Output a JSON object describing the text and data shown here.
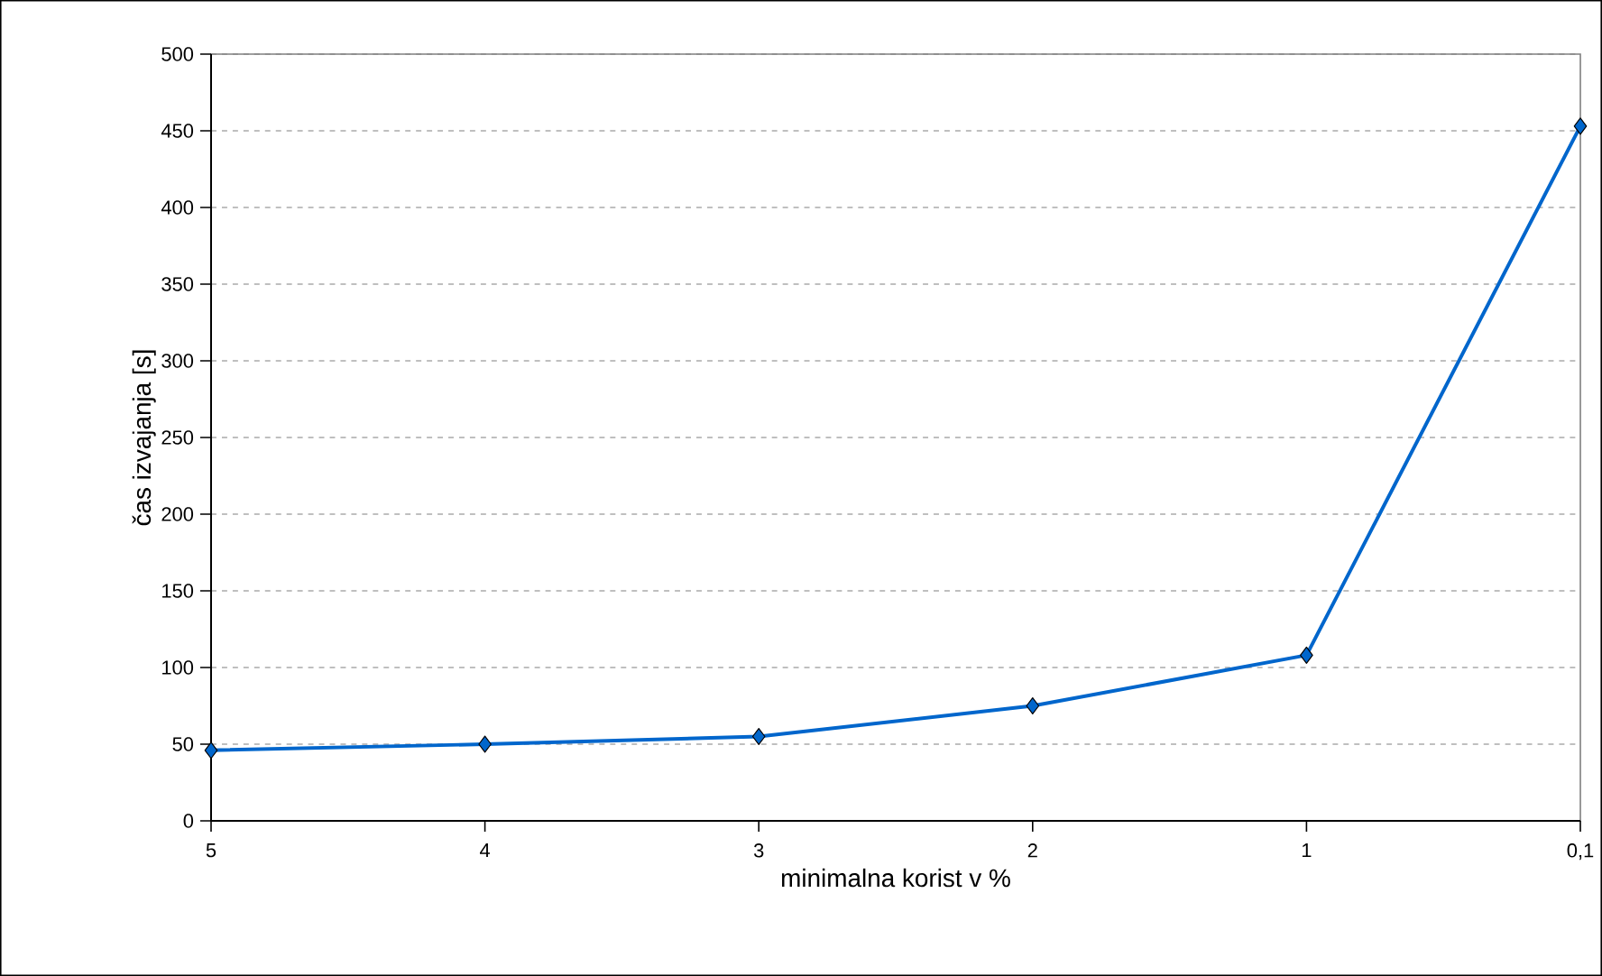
{
  "chart_data": {
    "type": "line",
    "xlabel": "minimalna korist v %",
    "ylabel": "čas izvajanja [s]",
    "categories": [
      "5",
      "4",
      "3",
      "2",
      "1",
      "0,1"
    ],
    "series": [
      {
        "color": "#0066cc",
        "values": [
          46,
          50,
          55,
          75,
          108,
          453
        ]
      }
    ],
    "ylim": [
      0,
      500
    ],
    "yticks": [
      0,
      50,
      100,
      150,
      200,
      250,
      300,
      350,
      400,
      450,
      500
    ],
    "grid": "y",
    "marker": "diamond",
    "line_style": "solid"
  }
}
